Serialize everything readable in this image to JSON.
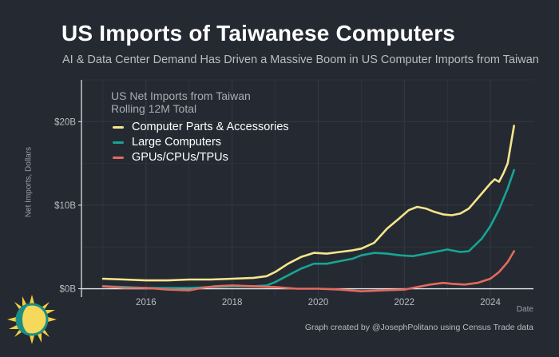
{
  "header": {
    "title": "US Imports of Taiwanese Computers",
    "subtitle": "AI & Data Center Demand Has Driven a Massive Boom in US Computer Imports from Taiwan"
  },
  "footer": {
    "credit": "Graph created by @JosephPolitano using Census Trade data"
  },
  "colors": {
    "background": "#252a32",
    "grid": "#333a44",
    "axis": "#e9eaec",
    "tick_text": "#b9bcc1"
  },
  "chart_data": {
    "type": "line",
    "title": "US Imports of Taiwanese Computers",
    "subtitle": "AI & Data Center Demand Has Driven a Massive Boom in US Computer Imports from Taiwan",
    "xlabel": "Date",
    "ylabel": "Net Imports, Dollars",
    "xlim": [
      2014.5,
      2025.0
    ],
    "ylim": [
      -1,
      25
    ],
    "y_unit": "billions USD",
    "x_ticks": [
      2016,
      2018,
      2020,
      2022,
      2024
    ],
    "x_tick_labels": [
      "2016",
      "2018",
      "2020",
      "2022",
      "2024"
    ],
    "y_ticks": [
      0,
      10,
      20
    ],
    "y_tick_labels": [
      "$0B",
      "$10B",
      "$20B"
    ],
    "grid": true,
    "legend_position": "top-left",
    "legend_title": [
      "US Net Imports from Taiwan",
      "Rolling 12M Total"
    ],
    "series": [
      {
        "name": "Computer Parts & Accessories",
        "color": "#f6e68c",
        "x": [
          2015.0,
          2015.5,
          2016.0,
          2016.5,
          2017.0,
          2017.5,
          2018.0,
          2018.5,
          2018.8,
          2019.0,
          2019.3,
          2019.6,
          2019.9,
          2020.2,
          2020.5,
          2020.8,
          2021.0,
          2021.3,
          2021.6,
          2021.9,
          2022.1,
          2022.3,
          2022.5,
          2022.7,
          2022.9,
          2023.1,
          2023.3,
          2023.5,
          2023.7,
          2023.9,
          2024.0,
          2024.1,
          2024.2,
          2024.3,
          2024.4,
          2024.5,
          2024.55
        ],
        "values": [
          1.2,
          1.1,
          1.0,
          1.0,
          1.1,
          1.1,
          1.2,
          1.3,
          1.5,
          2.0,
          3.0,
          3.8,
          4.3,
          4.2,
          4.4,
          4.6,
          4.8,
          5.5,
          7.2,
          8.5,
          9.4,
          9.8,
          9.6,
          9.2,
          8.9,
          8.8,
          9.0,
          9.6,
          10.8,
          12.0,
          12.6,
          13.1,
          12.8,
          13.8,
          15.0,
          18.0,
          19.5
        ]
      },
      {
        "name": "Large Computers",
        "color": "#16a595",
        "x": [
          2015.0,
          2015.5,
          2016.0,
          2016.5,
          2017.0,
          2017.5,
          2018.0,
          2018.5,
          2018.8,
          2019.0,
          2019.3,
          2019.6,
          2019.9,
          2020.2,
          2020.5,
          2020.8,
          2021.0,
          2021.3,
          2021.6,
          2021.9,
          2022.2,
          2022.5,
          2022.8,
          2023.0,
          2023.3,
          2023.5,
          2023.8,
          2024.0,
          2024.2,
          2024.4,
          2024.55
        ],
        "values": [
          0.3,
          0.2,
          0.1,
          0.1,
          0.1,
          0.2,
          0.3,
          0.3,
          0.4,
          0.8,
          1.6,
          2.4,
          3.0,
          3.0,
          3.3,
          3.6,
          4.0,
          4.3,
          4.2,
          4.0,
          3.9,
          4.2,
          4.5,
          4.7,
          4.4,
          4.5,
          6.0,
          7.5,
          9.5,
          12.0,
          14.2
        ]
      },
      {
        "name": "GPUs/CPUs/TPUs",
        "color": "#e46a5e",
        "x": [
          2015.0,
          2015.5,
          2016.0,
          2016.5,
          2017.0,
          2017.3,
          2017.6,
          2018.0,
          2018.5,
          2019.0,
          2019.5,
          2020.0,
          2020.5,
          2021.0,
          2021.5,
          2022.0,
          2022.3,
          2022.6,
          2022.9,
          2023.1,
          2023.4,
          2023.7,
          2024.0,
          2024.2,
          2024.4,
          2024.55
        ],
        "values": [
          0.3,
          0.1,
          0.1,
          -0.1,
          -0.2,
          0.1,
          0.3,
          0.4,
          0.3,
          0.2,
          0.0,
          0.0,
          -0.1,
          -0.3,
          -0.2,
          -0.1,
          0.2,
          0.5,
          0.7,
          0.6,
          0.5,
          0.7,
          1.2,
          2.0,
          3.2,
          4.5
        ]
      }
    ]
  }
}
